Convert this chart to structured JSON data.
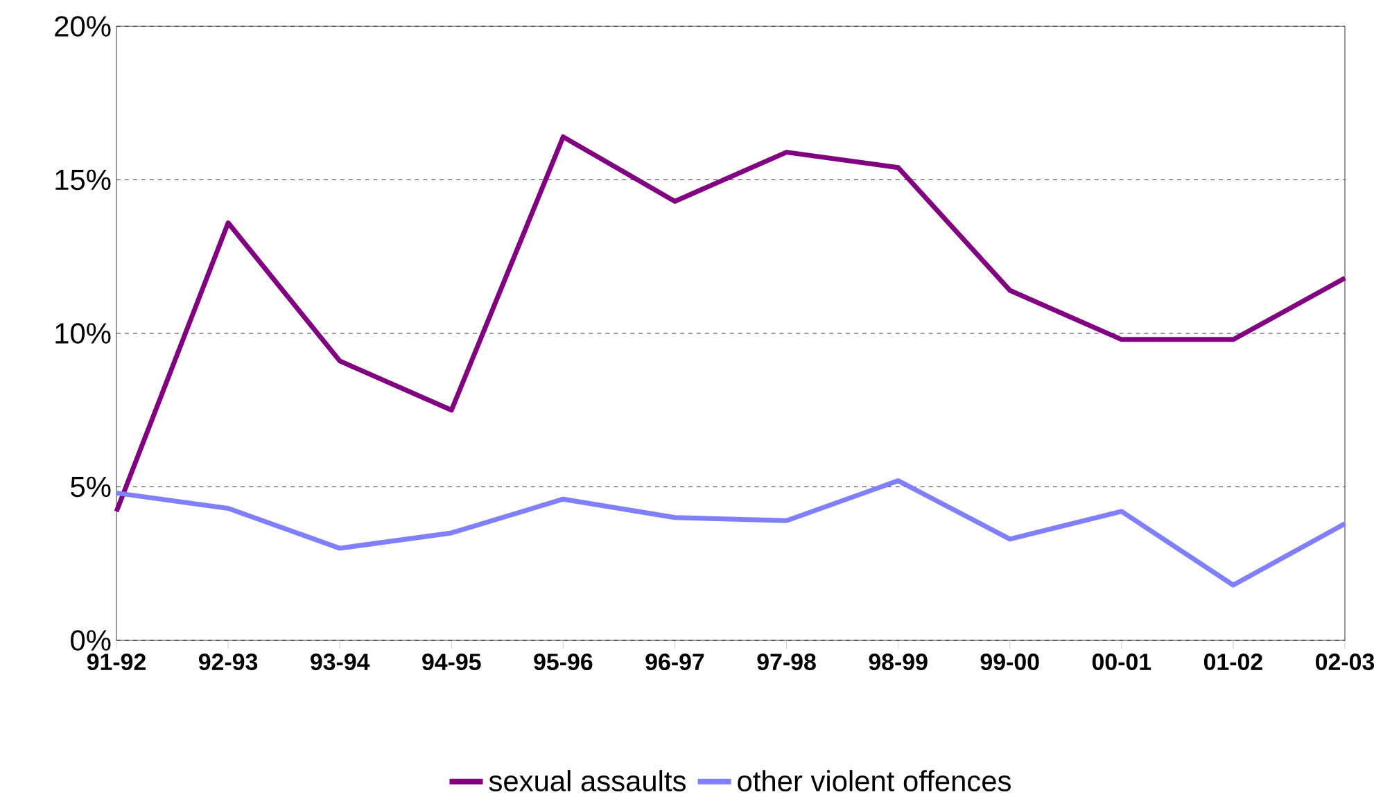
{
  "chart_data": {
    "type": "line",
    "categories": [
      "91-92",
      "92-93",
      "93-94",
      "94-95",
      "95-96",
      "96-97",
      "97-98",
      "98-99",
      "99-00",
      "00-01",
      "01-02",
      "02-03"
    ],
    "series": [
      {
        "name": "sexual assaults",
        "color": "#800080",
        "values": [
          4.2,
          13.6,
          9.1,
          7.5,
          16.4,
          14.3,
          15.9,
          15.4,
          11.4,
          9.8,
          9.8,
          11.8
        ]
      },
      {
        "name": "other violent offences",
        "color": "#8080ff",
        "values": [
          4.8,
          4.3,
          3.0,
          3.5,
          4.6,
          4.0,
          3.9,
          5.2,
          3.3,
          4.2,
          1.8,
          3.8
        ]
      }
    ],
    "ylim": [
      0,
      20
    ],
    "yticks": [
      {
        "value": 0,
        "label": "0%"
      },
      {
        "value": 5,
        "label": "5%"
      },
      {
        "value": 10,
        "label": "10%"
      },
      {
        "value": 15,
        "label": "15%"
      },
      {
        "value": 20,
        "label": "20%"
      }
    ],
    "grid": "y",
    "legend": "bottom",
    "marker": "none",
    "line_style": "solid"
  }
}
